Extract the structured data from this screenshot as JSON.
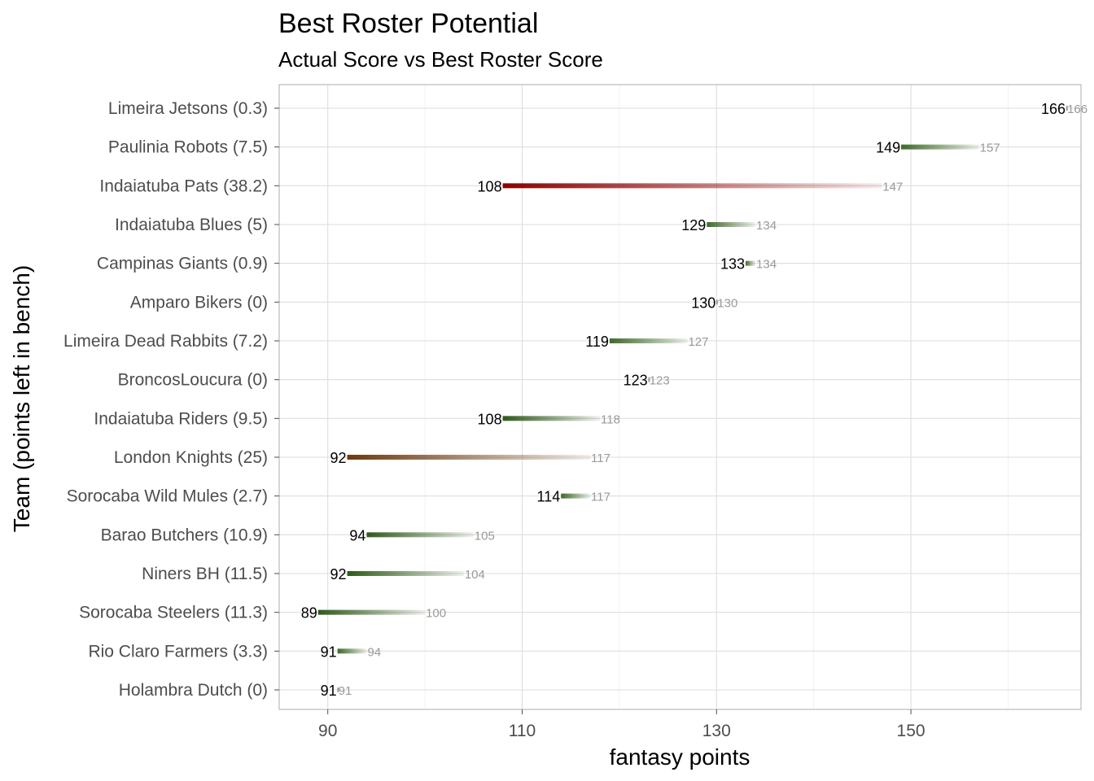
{
  "chart_data": {
    "type": "dumbbell",
    "title": "Best Roster Potential",
    "subtitle": "Actual Score vs Best Roster Score",
    "xlabel": "fantasy points",
    "ylabel": "Team (points left in bench)",
    "xlim": [
      85,
      167.5
    ],
    "x_ticks": [
      90,
      110,
      130,
      150
    ],
    "grid": true,
    "colors": {
      "high_gap": "#8b0000",
      "mid_gap": "#6b3a10",
      "low_gap": "#3f6b2a",
      "best_label": "#999999"
    },
    "teams": [
      {
        "label": "Limeira Jetsons (0.3)",
        "actual": 166,
        "best": 166,
        "actual_label": "166",
        "best_label": "166",
        "color": "#3f6b2a"
      },
      {
        "label": "Paulinia Robots (7.5)",
        "actual": 149,
        "best": 157,
        "actual_label": "149",
        "best_label": "157",
        "color": "#3f6b2a"
      },
      {
        "label": "Indaiatuba Pats (38.2)",
        "actual": 108,
        "best": 147,
        "actual_label": "108",
        "best_label": "147",
        "color": "#8b0000"
      },
      {
        "label": "Indaiatuba Blues (5)",
        "actual": 129,
        "best": 134,
        "actual_label": "129",
        "best_label": "134",
        "color": "#3f6b2a"
      },
      {
        "label": "Campinas Giants (0.9)",
        "actual": 133,
        "best": 134,
        "actual_label": "133",
        "best_label": "134",
        "color": "#3f6b2a"
      },
      {
        "label": "Amparo Bikers (0)",
        "actual": 130,
        "best": 130,
        "actual_label": "130",
        "best_label": "130",
        "color": "#3f6b2a"
      },
      {
        "label": "Limeira Dead Rabbits (7.2)",
        "actual": 119,
        "best": 127,
        "actual_label": "119",
        "best_label": "127",
        "color": "#3f6b2a"
      },
      {
        "label": "BroncosLoucura (0)",
        "actual": 123,
        "best": 123,
        "actual_label": "123",
        "best_label": "123",
        "color": "#3f6b2a"
      },
      {
        "label": "Indaiatuba Riders (9.5)",
        "actual": 108,
        "best": 118,
        "actual_label": "108",
        "best_label": "118",
        "color": "#2f5a1a"
      },
      {
        "label": "London Knights (25)",
        "actual": 92,
        "best": 117,
        "actual_label": "92",
        "best_label": "117",
        "color": "#6b3a10"
      },
      {
        "label": "Sorocaba Wild Mules (2.7)",
        "actual": 114,
        "best": 117,
        "actual_label": "114",
        "best_label": "117",
        "color": "#3f6b2a"
      },
      {
        "label": "Barao Butchers (10.9)",
        "actual": 94,
        "best": 105,
        "actual_label": "94",
        "best_label": "105",
        "color": "#2f5a1a"
      },
      {
        "label": "Niners BH (11.5)",
        "actual": 92,
        "best": 104,
        "actual_label": "92",
        "best_label": "104",
        "color": "#2f5a1a"
      },
      {
        "label": "Sorocaba Steelers (11.3)",
        "actual": 89,
        "best": 100,
        "actual_label": "89",
        "best_label": "100",
        "color": "#2f5a1a"
      },
      {
        "label": "Rio Claro Farmers (3.3)",
        "actual": 91,
        "best": 94,
        "actual_label": "91",
        "best_label": "94",
        "color": "#3f6b2a"
      },
      {
        "label": "Holambra Dutch (0)",
        "actual": 91,
        "best": 91,
        "actual_label": "91",
        "best_label": "91",
        "color": "#3f6b2a"
      }
    ]
  }
}
